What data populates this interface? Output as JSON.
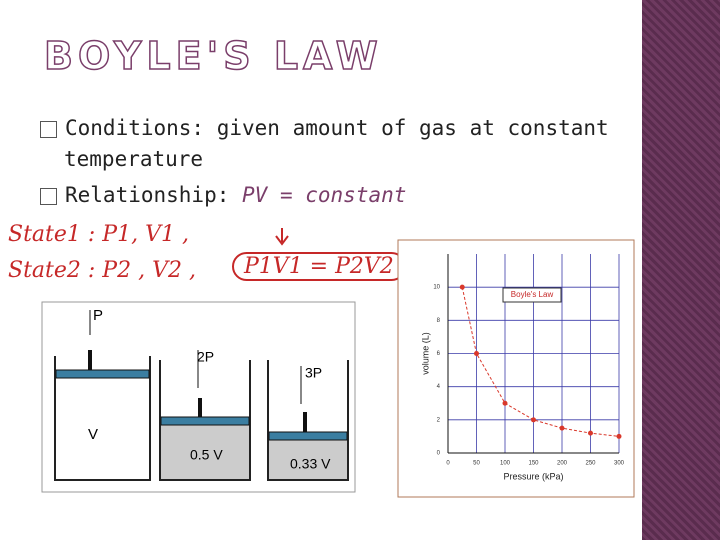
{
  "title": "BOYLE'S LAW",
  "bullets": [
    {
      "label": "Conditions:",
      "text": "given amount of gas at constant",
      "continuation": "temperature"
    },
    {
      "label": "Relationship:",
      "text": "PV = constant"
    }
  ],
  "annotations": [
    "State1 : P1, V1 ,",
    "State2 : P2 , V2 ,",
    "P1V1 = P2V2"
  ],
  "diagram": {
    "labels": [
      "P",
      "V",
      "2P",
      "0.5 V",
      "3P",
      "0.33 V"
    ]
  },
  "chart_data": {
    "type": "line",
    "title": "Boyle's Law",
    "x_label": "Pressure (kPa)",
    "y_label": "volume (L)",
    "x": [
      25,
      50,
      100,
      150,
      200,
      250,
      300
    ],
    "values": [
      10,
      6,
      3,
      2,
      1.5,
      1.2,
      1
    ],
    "color": "#d9382b",
    "xlim": [
      0,
      300
    ],
    "ylim": [
      0,
      12
    ],
    "xticks": [
      0,
      50,
      100,
      150,
      200,
      250,
      300
    ],
    "yticks": [
      0,
      2,
      4,
      6,
      8,
      10
    ],
    "grid": true
  }
}
